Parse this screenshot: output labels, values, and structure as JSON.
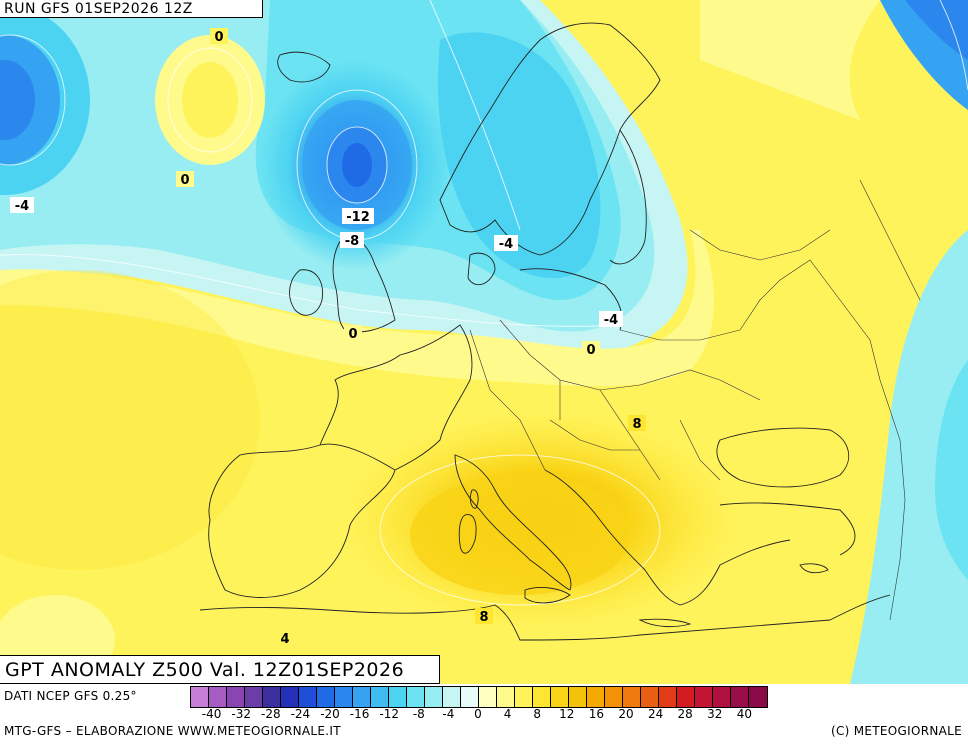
{
  "header": {
    "run_label": "RUN GFS 01SEP2026 12Z"
  },
  "title": {
    "text": "GPT ANOMALY Z500 Val. 12Z01SEP2026"
  },
  "footer": {
    "data_source": "DATI NCEP GFS 0.25°",
    "credit_left": "MTG-GFS – ELABORAZIONE WWW.METEOGIORNALE.IT",
    "credit_right": "(C) METEOGIORNALE"
  },
  "legend": {
    "colors": [
      "#c77fd6",
      "#a75cc4",
      "#8a45b3",
      "#6a3ea6",
      "#3c2e9e",
      "#2430b8",
      "#1f4fd8",
      "#1f6be6",
      "#2b86ee",
      "#35a3f2",
      "#3fbdf3",
      "#4dd3f2",
      "#6be3f2",
      "#97edf2",
      "#c6f5f4",
      "#e7fbf8",
      "#ffffc0",
      "#fffa8c",
      "#fff35c",
      "#fde632",
      "#f9d316",
      "#f4c10b",
      "#f6a903",
      "#f39208",
      "#ee7a0e",
      "#e95e13",
      "#e23b18",
      "#d41c20",
      "#c41433",
      "#b0103f",
      "#990d48",
      "#8a0a4a"
    ],
    "ticks": [
      "-40",
      "-32",
      "-28",
      "-24",
      "-20",
      "-16",
      "-12",
      "-8",
      "-4",
      "0",
      "4",
      "8",
      "12",
      "16",
      "20",
      "24",
      "28",
      "32",
      "40"
    ]
  },
  "contour_labels": [
    "0",
    "0",
    "-4",
    "-12",
    "-8",
    "-4",
    "0",
    "-4",
    "0",
    "8",
    "8",
    "4"
  ]
}
